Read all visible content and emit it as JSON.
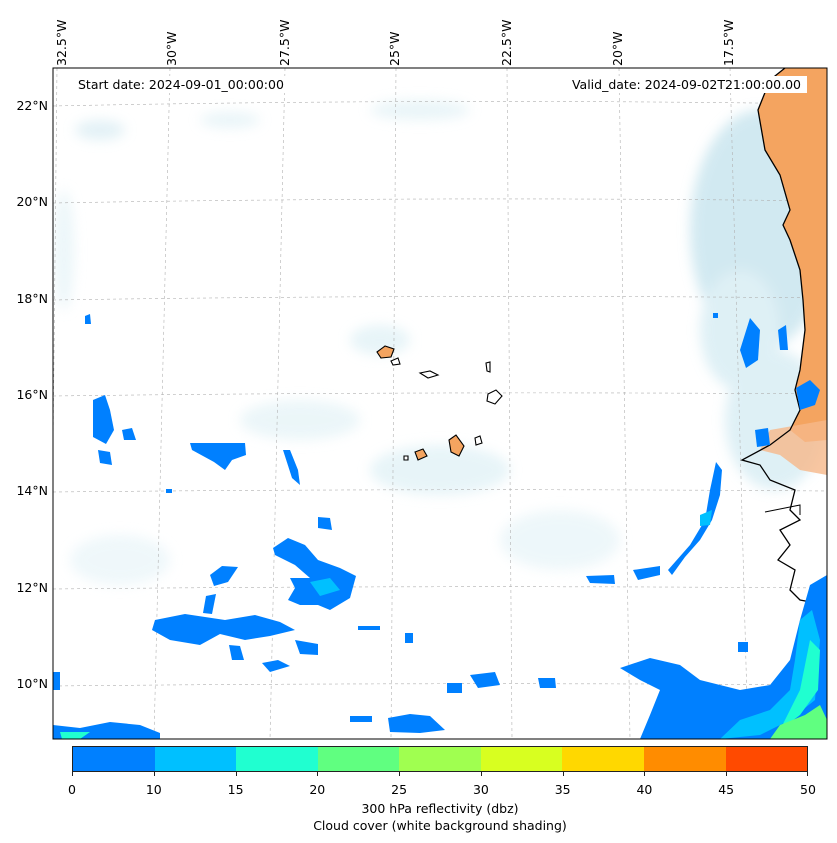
{
  "map": {
    "lon_labels": [
      "32.5°W",
      "30°W",
      "27.5°W",
      "25°W",
      "22.5°W",
      "20°W",
      "17.5°W"
    ],
    "lat_labels": [
      "22°N",
      "20°N",
      "18°N",
      "16°N",
      "14°N",
      "12°N",
      "10°N"
    ],
    "start_date": "Start date: 2024-09-01_00:00:00",
    "valid_date": "Valid_date: 2024-09-02T21:00:00.00",
    "colors": {
      "land": "#f4a460",
      "cloud": "#add8e6",
      "coastline": "#000000",
      "gridline": "#b0b0b0"
    }
  },
  "colorbar": {
    "label_line1": "300 hPa reflectivity (dbz)",
    "label_line2": "Cloud cover (white background shading)",
    "ticks": [
      "0",
      "10",
      "15",
      "20",
      "25",
      "30",
      "35",
      "40",
      "45",
      "50"
    ],
    "colors": [
      "#0080ff",
      "#00c0ff",
      "#20ffd0",
      "#60ff80",
      "#a0ff50",
      "#d8ff20",
      "#ffd800",
      "#ff8c00",
      "#ff4a00"
    ]
  }
}
